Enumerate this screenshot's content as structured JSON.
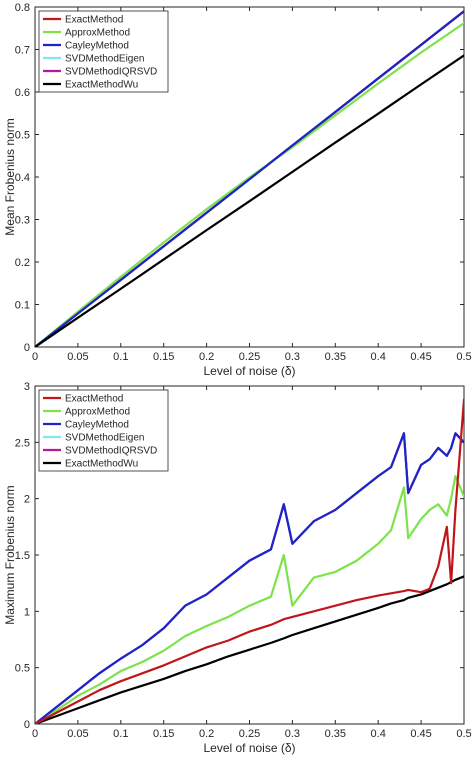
{
  "chart_data": [
    {
      "type": "line",
      "xlabel": "Level of noise (δ)",
      "ylabel": "Mean Frobenius norm",
      "xlim": [
        0,
        0.5
      ],
      "ylim": [
        0,
        0.8
      ],
      "xticks": [
        "0",
        "0.05",
        "0.1",
        "0.15",
        "0.2",
        "0.25",
        "0.3",
        "0.35",
        "0.4",
        "0.45",
        "0.5"
      ],
      "yticks": [
        "0",
        "0.1",
        "0.2",
        "0.3",
        "0.4",
        "0.5",
        "0.6",
        "0.7",
        "0.8"
      ],
      "grid": false,
      "legend": "top-left",
      "x": [
        0,
        0.05,
        0.1,
        0.15,
        0.2,
        0.25,
        0.3,
        0.35,
        0.4,
        0.45,
        0.5
      ],
      "series": [
        {
          "name": "ExactMethod",
          "color": "#c0161b",
          "values": [
            0,
            0.079,
            0.158,
            0.237,
            0.316,
            0.395,
            0.474,
            0.553,
            0.632,
            0.711,
            0.79
          ]
        },
        {
          "name": "ApproxMethod",
          "color": "#7ee24a",
          "values": [
            0,
            0.083,
            0.165,
            0.246,
            0.324,
            0.399,
            0.47,
            0.545,
            0.62,
            0.693,
            0.762
          ]
        },
        {
          "name": "CayleyMethod",
          "color": "#1c26c8",
          "values": [
            0,
            0.079,
            0.158,
            0.237,
            0.316,
            0.395,
            0.474,
            0.553,
            0.632,
            0.711,
            0.79
          ]
        },
        {
          "name": "SVDMethodEigen",
          "color": "#7fe8f0",
          "values": [
            0,
            0.079,
            0.158,
            0.237,
            0.316,
            0.395,
            0.474,
            0.553,
            0.632,
            0.711,
            0.79
          ]
        },
        {
          "name": "SVDMethodIQRSVD",
          "color": "#b4199a",
          "values": [
            0,
            0.079,
            0.158,
            0.237,
            0.316,
            0.395,
            0.474,
            0.553,
            0.632,
            0.711,
            0.79
          ]
        },
        {
          "name": "ExactMethodWu",
          "color": "#000000",
          "values": [
            0,
            0.069,
            0.137,
            0.206,
            0.275,
            0.343,
            0.412,
            0.481,
            0.549,
            0.618,
            0.686
          ]
        }
      ]
    },
    {
      "type": "line",
      "xlabel": "Level of noise (δ)",
      "ylabel": "Maximum Frobenius norm",
      "xlim": [
        0,
        0.5
      ],
      "ylim": [
        0,
        3
      ],
      "xticks": [
        "0",
        "0.05",
        "0.1",
        "0.15",
        "0.2",
        "0.25",
        "0.3",
        "0.35",
        "0.4",
        "0.45",
        "0.5"
      ],
      "yticks": [
        "0",
        "0.5",
        "1",
        "1.5",
        "2",
        "2.5",
        "3"
      ],
      "grid": false,
      "legend": "top-left",
      "x": [
        0,
        0.025,
        0.05,
        0.075,
        0.1,
        0.125,
        0.15,
        0.175,
        0.2,
        0.225,
        0.25,
        0.275,
        0.29,
        0.3,
        0.325,
        0.35,
        0.375,
        0.4,
        0.415,
        0.43,
        0.435,
        0.45,
        0.46,
        0.47,
        0.48,
        0.485,
        0.49,
        0.5
      ],
      "series": [
        {
          "name": "ExactMethod",
          "color": "#c0161b",
          "values": [
            0,
            0.1,
            0.2,
            0.3,
            0.38,
            0.45,
            0.52,
            0.6,
            0.68,
            0.74,
            0.82,
            0.88,
            0.93,
            0.95,
            1.0,
            1.05,
            1.1,
            1.14,
            1.16,
            1.18,
            1.19,
            1.17,
            1.2,
            1.4,
            1.75,
            1.25,
            1.9,
            2.88
          ]
        },
        {
          "name": "ApproxMethod",
          "color": "#7ee24a",
          "values": [
            0,
            0.12,
            0.25,
            0.35,
            0.47,
            0.55,
            0.65,
            0.78,
            0.87,
            0.95,
            1.05,
            1.13,
            1.5,
            1.05,
            1.3,
            1.35,
            1.45,
            1.6,
            1.72,
            2.1,
            1.65,
            1.82,
            1.9,
            1.95,
            1.85,
            2.0,
            2.2,
            2.02
          ]
        },
        {
          "name": "CayleyMethod",
          "color": "#1c26c8",
          "values": [
            0,
            0.15,
            0.3,
            0.45,
            0.58,
            0.7,
            0.85,
            1.05,
            1.15,
            1.3,
            1.45,
            1.55,
            1.95,
            1.6,
            1.8,
            1.9,
            2.05,
            2.2,
            2.28,
            2.58,
            2.05,
            2.3,
            2.35,
            2.45,
            2.38,
            2.45,
            2.58,
            2.5
          ]
        },
        {
          "name": "SVDMethodEigen",
          "color": "#7fe8f0",
          "values": [
            0,
            0.15,
            0.3,
            0.45,
            0.58,
            0.7,
            0.85,
            1.05,
            1.15,
            1.3,
            1.45,
            1.55,
            1.95,
            1.6,
            1.8,
            1.9,
            2.05,
            2.2,
            2.28,
            2.58,
            2.05,
            2.3,
            2.35,
            2.45,
            2.38,
            2.45,
            2.58,
            2.5
          ]
        },
        {
          "name": "SVDMethodIQRSVD",
          "color": "#b4199a",
          "values": [
            0,
            0.15,
            0.3,
            0.45,
            0.58,
            0.7,
            0.85,
            1.05,
            1.15,
            1.3,
            1.45,
            1.55,
            1.95,
            1.6,
            1.8,
            1.9,
            2.05,
            2.2,
            2.28,
            2.58,
            2.05,
            2.3,
            2.35,
            2.45,
            2.38,
            2.45,
            2.58,
            2.5
          ]
        },
        {
          "name": "ExactMethodWu",
          "color": "#000000",
          "values": [
            0,
            0.07,
            0.14,
            0.21,
            0.28,
            0.34,
            0.4,
            0.47,
            0.53,
            0.6,
            0.66,
            0.72,
            0.76,
            0.79,
            0.85,
            0.91,
            0.97,
            1.03,
            1.07,
            1.1,
            1.12,
            1.15,
            1.18,
            1.21,
            1.24,
            1.26,
            1.28,
            1.31
          ]
        }
      ]
    }
  ]
}
